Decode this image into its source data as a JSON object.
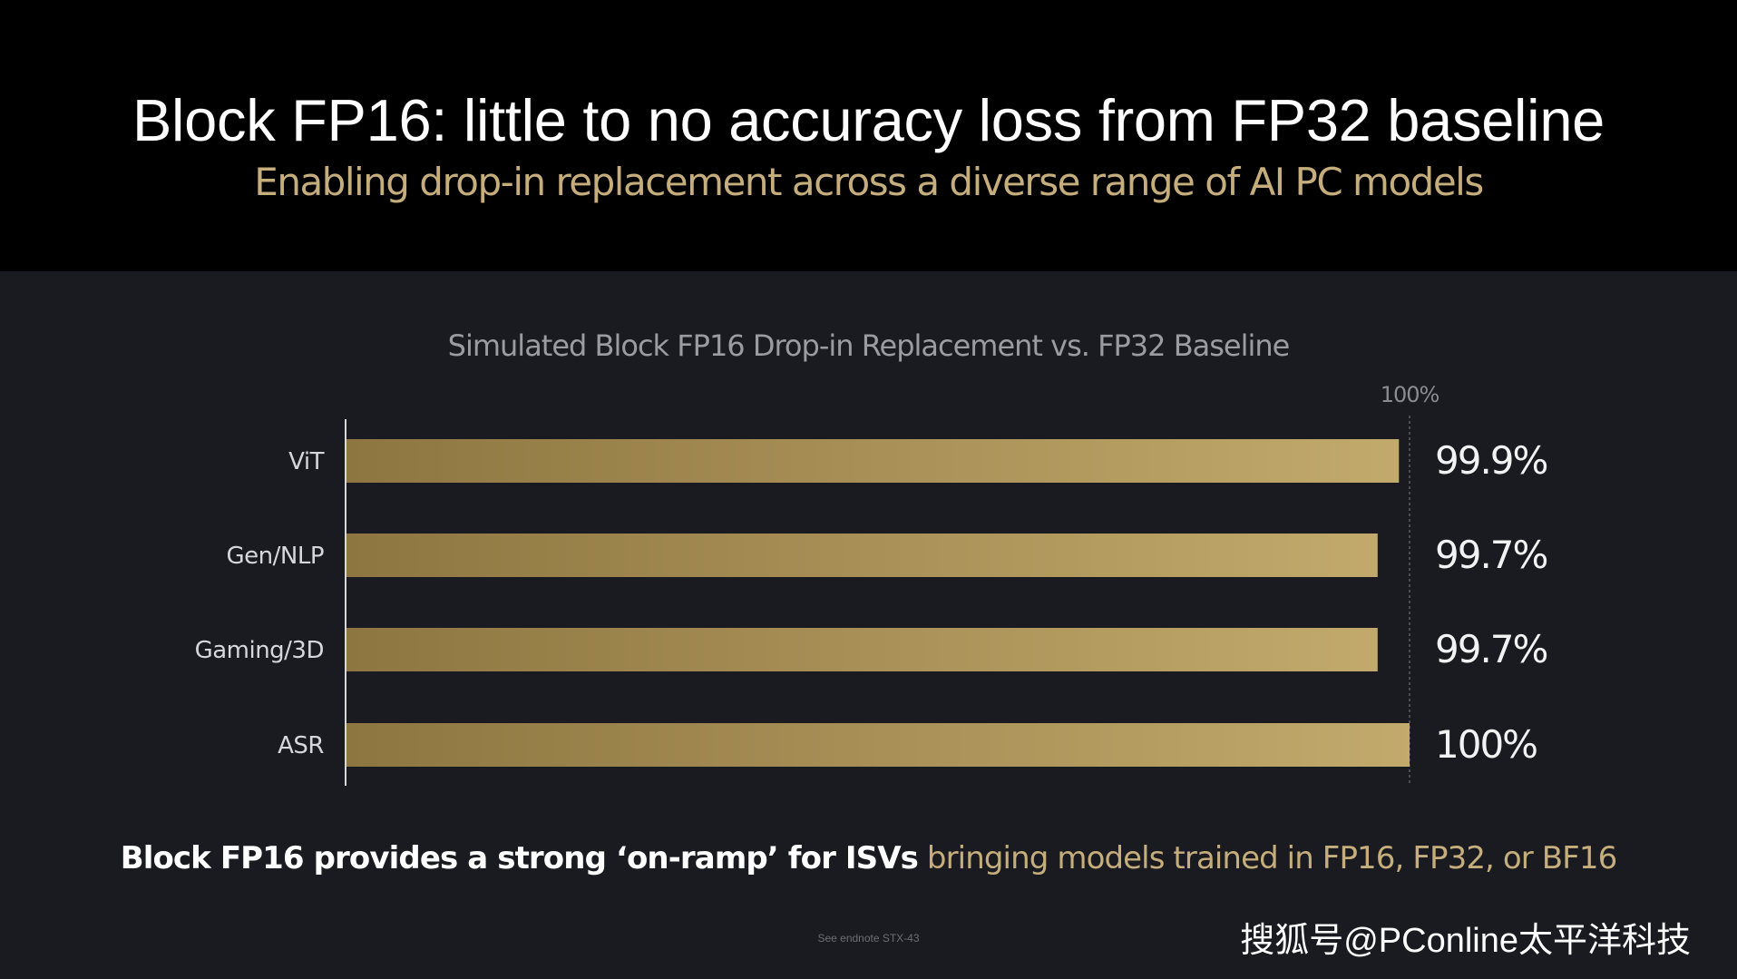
{
  "slide": {
    "title": "Block FP16: little to no accuracy loss from FP32 baseline",
    "subtitle": "Enabling drop-in replacement across a diverse range of AI PC models",
    "footer_bold": "Block FP16 provides a strong ‘on-ramp’ for ISVs",
    "footer_regular": " bringing models trained in FP16, FP32, or BF16",
    "endnote": "See endnote STX-43",
    "watermark": "搜狐号@PConline太平洋科技"
  },
  "colors": {
    "background": "#191b20",
    "header_background": "#000000",
    "accent_gold": "#c6ad7c",
    "bar_dark": "#8d7640",
    "bar_light": "#c2a96c"
  },
  "chart_data": {
    "type": "bar",
    "orientation": "horizontal",
    "title": "Simulated Block FP16 Drop-in Replacement vs. FP32 Baseline",
    "categories": [
      "ViT",
      "Gen/NLP",
      "Gaming/3D",
      "ASR"
    ],
    "values": [
      99.9,
      99.7,
      99.7,
      100
    ],
    "value_labels": [
      "99.9%",
      "99.7%",
      "99.7%",
      "100%"
    ],
    "reference_line": {
      "value": 100,
      "label": "100%",
      "style": "dashed"
    },
    "xlim": [
      90,
      100
    ],
    "grid": false,
    "legend": "none"
  }
}
